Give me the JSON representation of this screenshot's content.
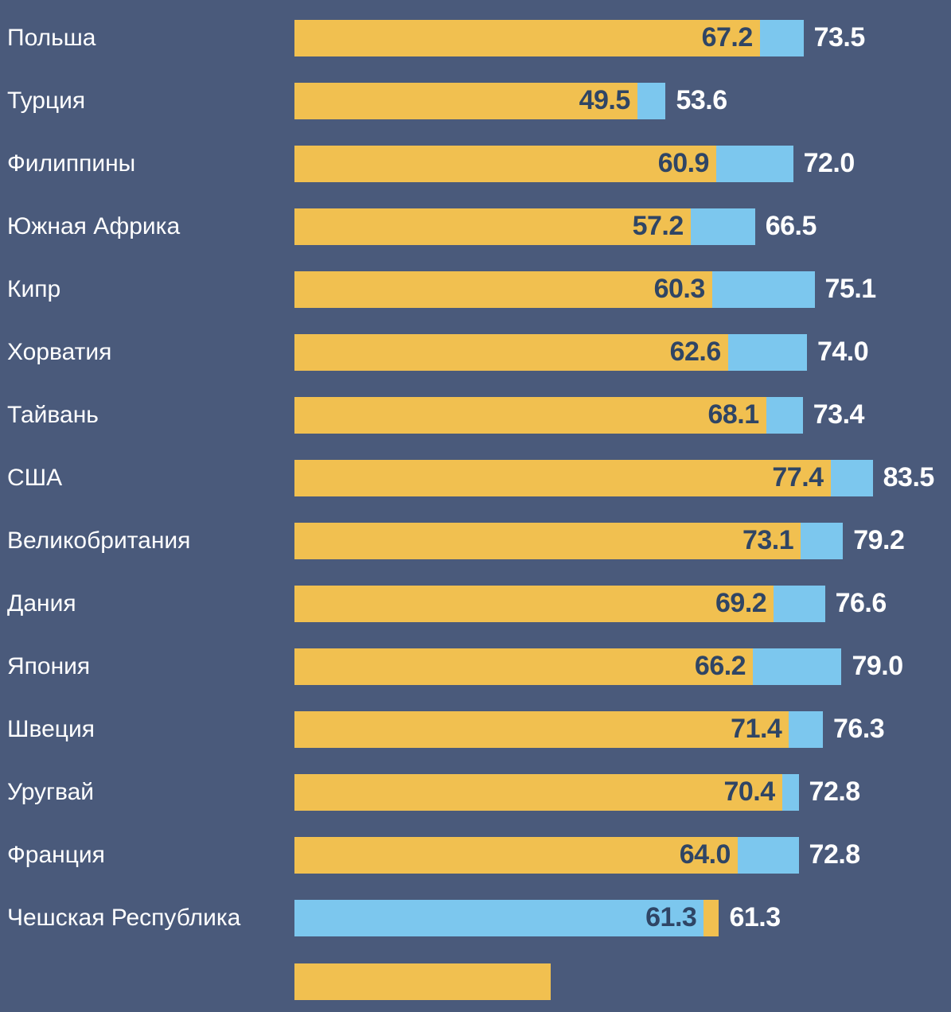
{
  "page": {
    "background": "#4A5A7B"
  },
  "chart_data": {
    "type": "bar",
    "orientation": "horizontal",
    "categories": [
      "Польша",
      "Турция",
      "Филиппины",
      "Южная Африка",
      "Кипр",
      "Хорватия",
      "Тайвань",
      "США",
      "Великобритания",
      "Дания",
      "Япония",
      "Швеция",
      "Уругвай",
      "Франция",
      "Чешская Республика"
    ],
    "series": [
      {
        "name": "yellow-series",
        "color": "#F1C050",
        "values": [
          67.2,
          49.5,
          60.9,
          57.2,
          60.3,
          62.6,
          68.1,
          77.4,
          73.1,
          69.2,
          66.2,
          71.4,
          70.4,
          64.0,
          61.3
        ]
      },
      {
        "name": "blue-series",
        "color": "#7CC7EE",
        "values": [
          73.5,
          53.6,
          72.0,
          66.5,
          75.1,
          74.0,
          73.4,
          83.5,
          79.2,
          76.6,
          79.0,
          76.3,
          72.8,
          72.8,
          61.3
        ]
      }
    ],
    "value_label_color_inner": "#2F4565",
    "value_label_color_outer": "#FFFFFF",
    "xlim": [
      0,
      94.8
    ],
    "grid": false,
    "legend": false,
    "swapped_rows": [
      14
    ],
    "swapped_tip_units": 2.2,
    "partial_bottom_bar": {
      "color": "#F1C050",
      "width_units": 37
    }
  }
}
